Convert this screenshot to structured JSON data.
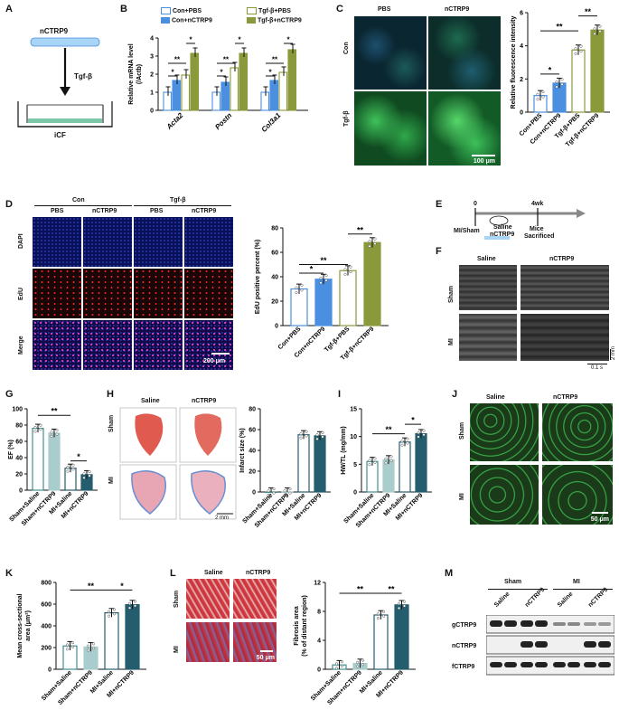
{
  "panels": {
    "A": {
      "letter": "A",
      "top_label": "nCTRP9",
      "arrow_label": "Tgf-β",
      "bottom_label": "iCF"
    },
    "B": {
      "letter": "B",
      "ylabel": "Relative mRNA  level (/Actb)",
      "ylabel_main": "Relative mRNA  level",
      "ylabel_sub": "(/Actb)",
      "legend": [
        "Con+PBS",
        "Tgf-β+PBS",
        "Con+nCTRP9",
        "Tgf-β+nCTRP9"
      ],
      "yticks": [
        "0",
        "1",
        "2",
        "3",
        "4"
      ]
    },
    "C": {
      "letter": "C",
      "col_labels": [
        "PBS",
        "nCTRP9"
      ],
      "row_labels": [
        "Con",
        "Tgf-β"
      ],
      "scale": "100 μm",
      "ylabel": "Relative fluorescence intensity",
      "yticks": [
        "0",
        "2",
        "4",
        "6"
      ],
      "cats": [
        "Con+PBS",
        "Con+nCTRP9",
        "Tgf-β+PBS",
        "Tgf-β+nCTRP9"
      ]
    },
    "D": {
      "letter": "D",
      "group_labels": [
        "Con",
        "Tgf-β"
      ],
      "col_labels": [
        "PBS",
        "nCTRP9",
        "PBS",
        "nCTRP9"
      ],
      "row_labels": [
        "DAPI",
        "EdU",
        "Merge"
      ],
      "scale": "200 μm",
      "ylabel": "EdU positive percent (%)",
      "yticks": [
        "0",
        "20",
        "40",
        "60",
        "80"
      ],
      "cats": [
        "Con+PBS",
        "Con+nCTRP9",
        "Tgf-β+PBS",
        "Tgf-β+nCTRP9"
      ]
    },
    "E": {
      "letter": "E",
      "t0": "0",
      "t1": "4wk",
      "left_label": "MI/Sham",
      "mid1": "Saline",
      "mid2": "nCTRP9",
      "right1": "Mice",
      "right2": "Sacrificed"
    },
    "F": {
      "letter": "F",
      "col_labels": [
        "Saline",
        "nCTRP9"
      ],
      "row_labels": [
        "Sham",
        "MI"
      ],
      "scale_y": "2 mm",
      "scale_x": "0.1 s"
    },
    "G": {
      "letter": "G",
      "ylabel": "EF (%)",
      "yticks": [
        "0",
        "20",
        "40",
        "60",
        "80",
        "100"
      ],
      "cats": [
        "Sham+Saline",
        "Sham+nCTRP9",
        "MI+Saline",
        "MI+nCTRP9"
      ]
    },
    "H": {
      "letter": "H",
      "col_labels": [
        "Saline",
        "nCTRP9"
      ],
      "row_labels": [
        "Sham",
        "MI"
      ],
      "scale": "2 mm",
      "ylabel": "Infarct size (%)",
      "yticks": [
        "0",
        "20",
        "40",
        "60",
        "80"
      ],
      "cats": [
        "Sham+Saline",
        "Sham+nCTRP9",
        "MI+Saline",
        "MI+nCTRP9"
      ]
    },
    "I": {
      "letter": "I",
      "ylabel": "HW/TL (mg/mm)",
      "yticks": [
        "0",
        "5",
        "10",
        "15"
      ],
      "cats": [
        "Sham+Saline",
        "Sham+nCTRP9",
        "MI+Saline",
        "MI+nCTRP9"
      ]
    },
    "J": {
      "letter": "J",
      "col_labels": [
        "Saline",
        "nCTRP9"
      ],
      "row_labels": [
        "Sham",
        "MI"
      ],
      "scale": "50 μm"
    },
    "K": {
      "letter": "K",
      "ylabel": "Mean cross-sectional area (μm²)",
      "ylabel1": "Mean cross-sectional",
      "ylabel2": "area (μm²)",
      "yticks": [
        "0",
        "200",
        "400",
        "600",
        "800"
      ],
      "cats": [
        "Sham+Saline",
        "Sham+nCTRP9",
        "MI+Saline",
        "MI+nCTRP9"
      ]
    },
    "L": {
      "letter": "L",
      "col_labels": [
        "Saline",
        "nCTRP9"
      ],
      "row_labels": [
        "Sham",
        "MI"
      ],
      "scale": "50 μm",
      "ylabel1": "Fibrosis area",
      "ylabel2": "(% of distant region)",
      "yticks": [
        "0",
        "4",
        "8",
        "12"
      ],
      "cats": [
        "Sham+Saline",
        "Sham+nCTRP9",
        "MI+Saline",
        "MI+nCTRP9"
      ]
    },
    "M": {
      "letter": "M",
      "groups": [
        "Sham",
        "MI"
      ],
      "lanes": [
        "Saline",
        "nCTRP9",
        "Saline",
        "nCTRP9"
      ],
      "bands": [
        "gCTRP9",
        "nCTRP9",
        "fCTRP9"
      ]
    }
  },
  "sig": {
    "star1": "*",
    "star2": "**"
  },
  "colors": {
    "c1": "#ffffff",
    "c1_edge": "#4a8fe0",
    "c2": "#4a8fe0",
    "c3": "#ffffff",
    "c3_edge": "#8a9a3a",
    "c4": "#8a9a3a",
    "t1": "#ffffff",
    "t1_edge": "#3f8f8f",
    "t2": "#a9cccc",
    "t3": "#ffffff",
    "t3_edge": "#245e6e",
    "t4": "#245e6e"
  },
  "chart_data": [
    {
      "type": "bar",
      "panel": "B",
      "categories": [
        "Acta2",
        "Postn",
        "Col3a1"
      ],
      "ylabel": "Relative mRNA  level (/Actb)",
      "ylim": [
        0,
        4
      ],
      "series": [
        {
          "name": "Con+PBS",
          "values": [
            1.0,
            1.0,
            1.0
          ]
        },
        {
          "name": "Con+nCTRP9",
          "values": [
            1.65,
            1.55,
            1.65
          ]
        },
        {
          "name": "Tgf-β+PBS",
          "values": [
            1.95,
            2.35,
            2.1
          ]
        },
        {
          "name": "Tgf-β+nCTRP9",
          "values": [
            3.15,
            3.15,
            3.35
          ]
        }
      ]
    },
    {
      "type": "bar",
      "panel": "C",
      "categories": [
        "Con+PBS",
        "Con+nCTRP9",
        "Tgf-β+PBS",
        "Tgf-β+nCTRP9"
      ],
      "ylabel": "Relative fluorescence intensity",
      "ylim": [
        0,
        6
      ],
      "values": [
        1.0,
        1.75,
        3.75,
        4.95
      ]
    },
    {
      "type": "bar",
      "panel": "D",
      "categories": [
        "Con+PBS",
        "Con+nCTRP9",
        "Tgf-β+PBS",
        "Tgf-β+nCTRP9"
      ],
      "ylabel": "EdU positive percent (%)",
      "ylim": [
        0,
        80
      ],
      "values": [
        30,
        38,
        45,
        68
      ]
    },
    {
      "type": "bar",
      "panel": "G",
      "categories": [
        "Sham+Saline",
        "Sham+nCTRP9",
        "MI+Saline",
        "MI+nCTRP9"
      ],
      "ylabel": "EF (%)",
      "ylim": [
        0,
        100
      ],
      "values": [
        76,
        70,
        27,
        19
      ]
    },
    {
      "type": "bar",
      "panel": "H",
      "categories": [
        "Sham+Saline",
        "Sham+nCTRP9",
        "MI+Saline",
        "MI+nCTRP9"
      ],
      "ylabel": "Infarct size (%)",
      "ylim": [
        0,
        80
      ],
      "values": [
        0,
        0,
        55,
        54
      ]
    },
    {
      "type": "bar",
      "panel": "I",
      "categories": [
        "Sham+Saline",
        "Sham+nCTRP9",
        "MI+Saline",
        "MI+nCTRP9"
      ],
      "ylabel": "HW/TL (mg/mm)",
      "ylim": [
        0,
        15
      ],
      "values": [
        5.5,
        5.8,
        9.0,
        10.5
      ]
    },
    {
      "type": "bar",
      "panel": "K",
      "categories": [
        "Sham+Saline",
        "Sham+nCTRP9",
        "MI+Saline",
        "MI+nCTRP9"
      ],
      "ylabel": "Mean cross-sectional area (μm²)",
      "ylim": [
        0,
        800
      ],
      "values": [
        215,
        205,
        520,
        595
      ]
    },
    {
      "type": "bar",
      "panel": "L",
      "categories": [
        "Sham+Saline",
        "Sham+nCTRP9",
        "MI+Saline",
        "MI+nCTRP9"
      ],
      "ylabel": "Fibrosis area (% of distant region)",
      "ylim": [
        0,
        12
      ],
      "values": [
        0.6,
        0.8,
        7.5,
        8.9
      ]
    }
  ]
}
